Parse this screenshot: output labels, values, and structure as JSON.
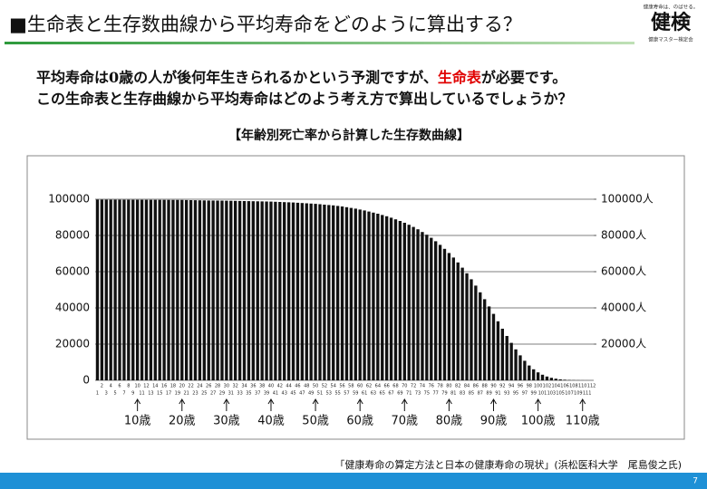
{
  "header": {
    "title": "■生命表と生存数曲線から平均寿命をどのように算出する？",
    "logo": {
      "tagline": "健康寿命は、のばせる。",
      "name": "健検",
      "org": "健康マスター検定会"
    }
  },
  "body": {
    "line1_before": "平均寿命は0歳の人が後何年生きられるかという予測ですが、",
    "line1_highlight": "生命表",
    "line1_after": "が必要です。",
    "line2": "この生命表と生存曲線から平均寿命はどのよう考え方で算出しているでしょうか？"
  },
  "chart_data": {
    "type": "bar",
    "title": "【年齢別死亡率から計算した生存数曲線】",
    "color": "#111111",
    "grid": true,
    "categories": [
      1,
      2,
      3,
      4,
      5,
      6,
      7,
      8,
      9,
      10,
      11,
      12,
      13,
      14,
      15,
      16,
      17,
      18,
      19,
      20,
      21,
      22,
      23,
      24,
      25,
      26,
      27,
      28,
      29,
      30,
      31,
      32,
      33,
      34,
      35,
      36,
      37,
      38,
      39,
      40,
      41,
      42,
      43,
      44,
      45,
      46,
      47,
      48,
      49,
      50,
      51,
      52,
      53,
      54,
      55,
      56,
      57,
      58,
      59,
      60,
      61,
      62,
      63,
      64,
      65,
      66,
      67,
      68,
      69,
      70,
      71,
      72,
      73,
      74,
      75,
      76,
      77,
      78,
      79,
      80,
      81,
      82,
      83,
      84,
      85,
      86,
      87,
      88,
      89,
      90,
      91,
      92,
      93,
      94,
      95,
      96,
      97,
      98,
      99,
      100,
      101,
      102,
      103,
      104,
      105,
      106,
      107,
      108,
      109,
      110,
      111,
      112
    ],
    "values": [
      99800,
      99770,
      99750,
      99740,
      99730,
      99720,
      99715,
      99710,
      99705,
      99700,
      99690,
      99680,
      99670,
      99660,
      99650,
      99640,
      99630,
      99620,
      99610,
      99600,
      99550,
      99500,
      99450,
      99400,
      99350,
      99300,
      99280,
      99260,
      99240,
      99200,
      99150,
      99100,
      99050,
      99000,
      98950,
      98900,
      98850,
      98800,
      98750,
      98700,
      98600,
      98500,
      98400,
      98300,
      98200,
      98050,
      97900,
      97750,
      97600,
      97450,
      97250,
      97000,
      96800,
      96600,
      96300,
      96000,
      95600,
      95200,
      94800,
      94300,
      93800,
      93200,
      92600,
      92000,
      91300,
      90600,
      89800,
      88900,
      88000,
      87000,
      85900,
      84700,
      83400,
      81900,
      80400,
      78700,
      76800,
      74800,
      72600,
      70300,
      67800,
      65100,
      62200,
      59100,
      55800,
      52300,
      48600,
      44800,
      40800,
      36700,
      32600,
      28500,
      24500,
      20700,
      17100,
      13800,
      10800,
      8200,
      6100,
      4400,
      3100,
      2100,
      1400,
      900,
      550,
      330,
      190,
      110,
      60,
      30,
      15,
      7
    ],
    "ylim": [
      0,
      110000
    ],
    "yticks": [
      0,
      20000,
      40000,
      60000,
      80000,
      100000
    ],
    "y2lim": [
      0,
      110000
    ],
    "y2ticks": [
      {
        "value": 20000,
        "label": "20000人"
      },
      {
        "value": 40000,
        "label": "40000人"
      },
      {
        "value": 60000,
        "label": "60000人"
      },
      {
        "value": 80000,
        "label": "80000人"
      },
      {
        "value": 100000,
        "label": "100000人"
      }
    ],
    "age_markers": [
      {
        "age": 10,
        "label": "10歳"
      },
      {
        "age": 20,
        "label": "20歳"
      },
      {
        "age": 30,
        "label": "30歳"
      },
      {
        "age": 40,
        "label": "40歳"
      },
      {
        "age": 50,
        "label": "50歳"
      },
      {
        "age": 60,
        "label": "60歳"
      },
      {
        "age": 70,
        "label": "70歳"
      },
      {
        "age": 80,
        "label": "80歳"
      },
      {
        "age": 90,
        "label": "90歳"
      },
      {
        "age": 100,
        "label": "100歳"
      },
      {
        "age": 110,
        "label": "110歳"
      }
    ]
  },
  "footer": {
    "source": "「健康寿命の算定方法と日本の健康寿命の現状」(浜松医科大学　尾島俊之氏)",
    "page": "7"
  }
}
